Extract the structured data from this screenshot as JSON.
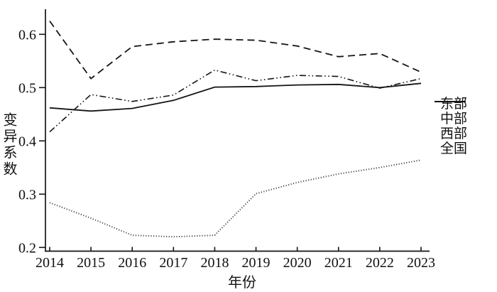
{
  "chart_data": {
    "type": "line",
    "title": "",
    "xlabel": "年份",
    "ylabel": "变异系数",
    "x": [
      2014,
      2015,
      2016,
      2017,
      2018,
      2019,
      2020,
      2021,
      2022,
      2023
    ],
    "y_ticks": [
      "0.2",
      "0.3",
      "0.4",
      "0.5",
      "0.6"
    ],
    "ylim": [
      0.193,
      0.647
    ],
    "grid": false,
    "legend_position": "right-middle",
    "line_color": "#141414",
    "dotted_line_color": "#4a4a4a",
    "series": [
      {
        "key": "east",
        "name": "东部",
        "line_style": "dashed",
        "values": [
          0.625,
          0.517,
          0.577,
          0.586,
          0.591,
          0.589,
          0.578,
          0.558,
          0.564,
          0.529
        ]
      },
      {
        "key": "central",
        "name": "中部",
        "line_style": "dotted",
        "values": [
          0.284,
          0.255,
          0.223,
          0.22,
          0.223,
          0.301,
          0.322,
          0.338,
          0.35,
          0.364
        ]
      },
      {
        "key": "west",
        "name": "西部",
        "line_style": "dash-dot-dot",
        "values": [
          0.417,
          0.487,
          0.474,
          0.486,
          0.533,
          0.513,
          0.523,
          0.521,
          0.499,
          0.517
        ]
      },
      {
        "key": "national",
        "name": "全国",
        "line_style": "solid",
        "values": [
          0.462,
          0.456,
          0.461,
          0.476,
          0.501,
          0.502,
          0.505,
          0.506,
          0.5,
          0.508
        ]
      }
    ]
  }
}
